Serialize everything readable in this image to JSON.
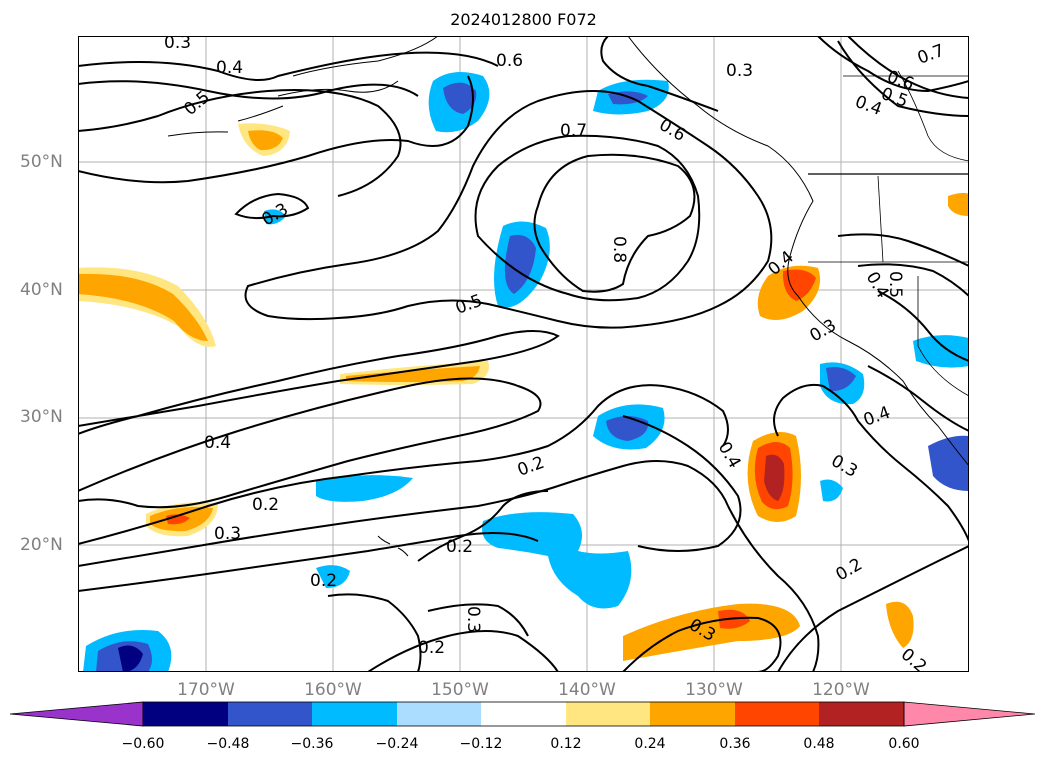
{
  "title": "2024012800 F072",
  "map": {
    "lat_labels": [
      "50°N",
      "40°N",
      "30°N",
      "20°N"
    ],
    "lon_labels": [
      "170°W",
      "160°W",
      "150°W",
      "140°W",
      "130°W",
      "120°W"
    ],
    "contour_labels": [
      "0.3",
      "0.4",
      "0.5",
      "0.6",
      "0.7",
      "0.8",
      "0.7",
      "0.6",
      "0.5",
      "0.4",
      "0.3",
      "0.6",
      "0.3",
      "0.5",
      "0.4",
      "0.3",
      "0.4",
      "0.5",
      "0.3",
      "0.4",
      "0.2",
      "0.2",
      "0.2",
      "0.3",
      "0.2",
      "0.3",
      "0.4",
      "0.2",
      "0.2",
      "0.4",
      "0.3",
      "0.2"
    ],
    "colors": {
      "coastline": "#000000",
      "grid": "#b0b0b0",
      "contour": "#000000"
    }
  },
  "colorbar": {
    "tick_labels": [
      "−0.60",
      "−0.48",
      "−0.36",
      "−0.24",
      "−0.12",
      "0.12",
      "0.24",
      "0.36",
      "0.48",
      "0.60"
    ],
    "colors": [
      "#9933cc",
      "#000080",
      "#3355cc",
      "#00bbff",
      "#aaddff",
      "#ffffff",
      "#ffe680",
      "#ffa500",
      "#ff4500",
      "#b22222",
      "#ff88aa"
    ]
  }
}
